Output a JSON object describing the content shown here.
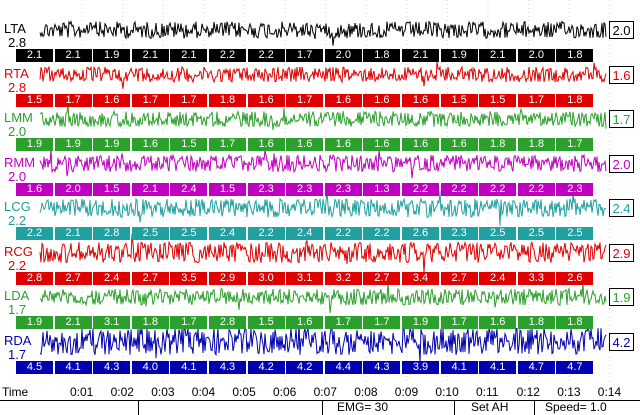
{
  "time_axis": {
    "label": "Time",
    "ticks": [
      "0:01",
      "0:02",
      "0:03",
      "0:04",
      "0:05",
      "0:06",
      "0:07",
      "0:08",
      "0:09",
      "0:10",
      "0:11",
      "0:12",
      "0:13",
      "0:14"
    ]
  },
  "status": {
    "emg": "EMG= 30",
    "set": "Set AH",
    "speed": "Speed= 1.0"
  },
  "channels": [
    {
      "name": "LTA",
      "scale": "2.8",
      "color": "#000000",
      "badge_text": "#ffffff",
      "average": "2.0",
      "values": [
        "2.1",
        "2.1",
        "1.9",
        "2.1",
        "2.1",
        "2.2",
        "2.2",
        "1.7",
        "2.0",
        "1.8",
        "2.1",
        "1.9",
        "2.1",
        "2.0",
        "1.8"
      ]
    },
    {
      "name": "RTA",
      "scale": "2.8",
      "color": "#e00000",
      "badge_text": "#ffffff",
      "average": "1.6",
      "values": [
        "1.5",
        "1.7",
        "1.6",
        "1.7",
        "1.7",
        "1.8",
        "1.6",
        "1.7",
        "1.6",
        "1.6",
        "1.6",
        "1.5",
        "1.5",
        "1.7",
        "1.8"
      ]
    },
    {
      "name": "LMM",
      "scale": "2.0",
      "color": "#2ca02c",
      "badge_text": "#ffffff",
      "average": "1.7",
      "values": [
        "1.9",
        "1.9",
        "1.9",
        "1.6",
        "1.5",
        "1.7",
        "1.6",
        "1.6",
        "1.6",
        "1.6",
        "1.6",
        "1.6",
        "1.8",
        "1.8",
        "1.7"
      ]
    },
    {
      "name": "RMM",
      "scale": "2.0",
      "color": "#c000c0",
      "badge_text": "#ffffff",
      "average": "2.0",
      "values": [
        "1.6",
        "2.0",
        "1.5",
        "2.1",
        "2.4",
        "1.5",
        "2.3",
        "2.3",
        "2.3",
        "1.3",
        "2.2",
        "2.2",
        "2.2",
        "2.2",
        "2.3"
      ]
    },
    {
      "name": "LCG",
      "scale": "2.2",
      "color": "#20a0a0",
      "badge_text": "#ffffff",
      "average": "2.4",
      "values": [
        "2.2",
        "2.1",
        "2.8",
        "2.5",
        "2.5",
        "2.4",
        "2.2",
        "2.4",
        "2.2",
        "2.2",
        "2.6",
        "2.3",
        "2.5",
        "2.5",
        "2.5"
      ]
    },
    {
      "name": "RCG",
      "scale": "2.2",
      "color": "#e00000",
      "badge_text": "#ffffff",
      "average": "2.9",
      "values": [
        "2.8",
        "2.7",
        "2.4",
        "2.7",
        "3.5",
        "2.9",
        "3.0",
        "3.1",
        "3.2",
        "2.7",
        "3.4",
        "2.7",
        "2.4",
        "3.3",
        "2.6"
      ]
    },
    {
      "name": "LDA",
      "scale": "1.7",
      "color": "#2ca02c",
      "badge_text": "#ffffff",
      "average": "1.9",
      "values": [
        "1.9",
        "2.1",
        "3.1",
        "1.8",
        "1.7",
        "2.8",
        "1.5",
        "1.6",
        "1.7",
        "1.7",
        "1.9",
        "1.7",
        "1.6",
        "1.8",
        "1.8"
      ]
    },
    {
      "name": "RDA",
      "scale": "1.7",
      "color": "#0000b0",
      "badge_text": "#ffffff",
      "average": "4.2",
      "values": [
        "4.5",
        "4.1",
        "4.3",
        "4.0",
        "4.1",
        "4.3",
        "4.2",
        "4.2",
        "4.4",
        "4.3",
        "3.9",
        "4.1",
        "4.1",
        "4.7",
        "4.7"
      ]
    }
  ]
}
